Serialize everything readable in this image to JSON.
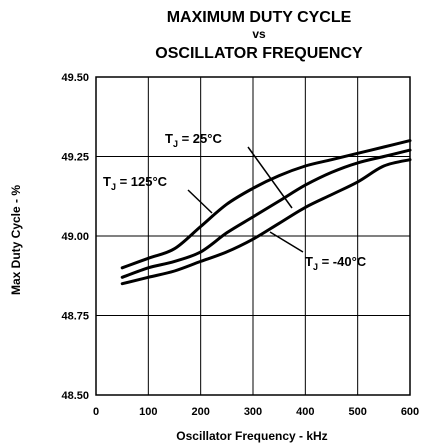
{
  "chart_data": {
    "type": "line",
    "title_lines": [
      "MAXIMUM DUTY CYCLE",
      "vs",
      "OSCILLATOR FREQUENCY"
    ],
    "xlabel": "Oscillator Frequency - kHz",
    "ylabel": "Max Duty Cycle - %",
    "xlim": [
      0,
      600
    ],
    "ylim": [
      48.5,
      49.5
    ],
    "xticks": [
      "0",
      "100",
      "200",
      "300",
      "400",
      "500",
      "600"
    ],
    "yticks": [
      "48.50",
      "48.75",
      "49.00",
      "49.25",
      "49.50"
    ],
    "grid": true,
    "series": [
      {
        "name": "T_J = 125°C",
        "x": [
          50,
          100,
          150,
          200,
          250,
          300,
          350,
          400,
          450,
          500,
          550,
          600
        ],
        "y": [
          48.9,
          48.93,
          48.96,
          49.03,
          49.1,
          49.15,
          49.19,
          49.22,
          49.24,
          49.26,
          49.28,
          49.3
        ]
      },
      {
        "name": "T_J = 25°C",
        "x": [
          50,
          100,
          150,
          200,
          250,
          300,
          350,
          400,
          450,
          500,
          550,
          600
        ],
        "y": [
          48.87,
          48.9,
          48.92,
          48.95,
          49.01,
          49.06,
          49.11,
          49.16,
          49.2,
          49.23,
          49.25,
          49.27
        ]
      },
      {
        "name": "T_J = -40°C",
        "x": [
          50,
          100,
          150,
          200,
          250,
          300,
          350,
          400,
          450,
          500,
          550,
          600
        ],
        "y": [
          48.85,
          48.87,
          48.89,
          48.92,
          48.95,
          48.99,
          49.04,
          49.09,
          49.13,
          49.17,
          49.22,
          49.24
        ]
      }
    ],
    "annotations": [
      {
        "main": "T",
        "sub": "J",
        "rest": " = 25°C",
        "series": "T_J = 25°C"
      },
      {
        "main": "T",
        "sub": "J",
        "rest": " = 125°C",
        "series": "T_J = 125°C"
      },
      {
        "main": "T",
        "sub": "J",
        "rest": " = -40°C",
        "series": "T_J = -40°C"
      }
    ]
  }
}
